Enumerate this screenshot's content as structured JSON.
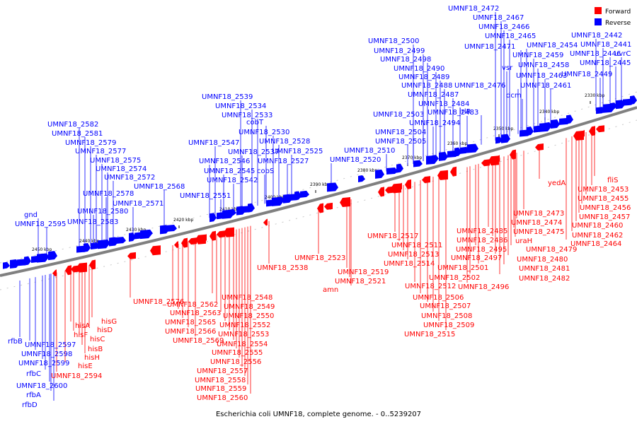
{
  "caption": "Escherichia coli UMNF18, complete genome. - 0..5239207",
  "legend": [
    {
      "label": "Forward",
      "color": "#ff0000"
    },
    {
      "label": "Reverse",
      "color": "#0000ff"
    }
  ],
  "colors": {
    "forward": "#ff0000",
    "reverse": "#0000ff",
    "backbone": "#808080"
  },
  "ticks": [
    {
      "label": "2450 kbp"
    },
    {
      "label": "2440 kbp"
    },
    {
      "label": "2430 kbp"
    },
    {
      "label": "2420 kbp"
    },
    {
      "label": "2410 kbp"
    },
    {
      "label": "2400 kbp"
    },
    {
      "label": "2390 kbp"
    },
    {
      "label": "2380 kbp"
    },
    {
      "label": "2370 kbp"
    },
    {
      "label": "2360 kbp"
    },
    {
      "label": "2350 kbp"
    },
    {
      "label": "2340 kbp"
    },
    {
      "label": "2330 kbp"
    }
  ],
  "reverse_labels": [
    "UMNF18_2472",
    "UMNF18_2467",
    "UMNF18_2466",
    "UMNF18_2465",
    "UMNF18_2471",
    "UMNF18_2454",
    "UMNF18_2459",
    "vsr",
    "UMNF18_2458",
    "UMNF18_2463",
    "UMNF18_2476",
    "dcm",
    "UMNF18_2461",
    "UMNF18_2442",
    "UMNF18_2441",
    "UMNF18_2446",
    "uvrC",
    "UMNF18_2445",
    "UMNF18_2449",
    "UMNF18_2500",
    "UMNF18_2499",
    "UMNF18_2498",
    "UMNF18_2490",
    "UMNF18_2489",
    "UMNF18_2488",
    "UMNF18_2487",
    "UMNF18_2484",
    "UMNF18_2483",
    "irlR",
    "UMNF18_2503",
    "UMNF18_2494",
    "UMNF18_2504",
    "UMNF18_2505",
    "UMNF18_2510",
    "UMNF18_2520",
    "UMNF18_2539",
    "UMNF18_2534",
    "UMNF18_2533",
    "cobT",
    "UMNF18_2530",
    "UMNF18_2547",
    "UMNF18_2528",
    "UMNF18_2537",
    "UMNF18_2546",
    "UMNF18_2525",
    "UMNF18_2527",
    "UMNF18_2545",
    "cobS",
    "UMNF18_2542",
    "UMNF18_2568",
    "UMNF18_2551",
    "UMNF18_2582",
    "UMNF18_2581",
    "UMNF18_2579",
    "UMNF18_2577",
    "UMNF18_2575",
    "UMNF18_2574",
    "UMNF18_2572",
    "UMNF18_2578",
    "UMNF18_2571",
    "UMNF18_2580",
    "UMNF18_2583",
    "gnd",
    "UMNF18_2595",
    "rfbB",
    "UMNF18_2597",
    "UMNF18_2598",
    "UMNF18_2599",
    "rfbC",
    "UMNF18_2600",
    "rfbA",
    "rfbD"
  ],
  "forward_labels": [
    "fliS",
    "UMNF18_2453",
    "UMNF18_2455",
    "UMNF18_2456",
    "UMNF18_2457",
    "UMNF18_2460",
    "UMNF18_2462",
    "UMNF18_2464",
    "yedA",
    "UMNF18_2473",
    "UMNF18_2474",
    "UMNF18_2475",
    "UMNF18_2485",
    "UMNF18_2486",
    "uraH",
    "UMNF18_2479",
    "UMNF18_2495",
    "UMNF18_2497",
    "UMNF18_2480",
    "UMNF18_2501",
    "UMNF18_2481",
    "UMNF18_2502",
    "UMNF18_2482",
    "UMNF18_2496",
    "UMNF18_2517",
    "UMNF18_2511",
    "UMNF18_2513",
    "UMNF18_2514",
    "UMNF18_2512",
    "UMNF18_2506",
    "UMNF18_2507",
    "UMNF18_2508",
    "UMNF18_2509",
    "UMNF18_2515",
    "UMNF18_2523",
    "UMNF18_2538",
    "UMNF18_2519",
    "UMNF18_2521",
    "amn",
    "UMNF18_2548",
    "UMNF18_2549",
    "UMNF18_2550",
    "UMNF18_2552",
    "UMNF18_2553",
    "UMNF18_2554",
    "UMNF18_2555",
    "UMNF18_2556",
    "UMNF18_2557",
    "UMNF18_2558",
    "UMNF18_2559",
    "UMNF18_2560",
    "UMNF18_2576",
    "UMNF18_2562",
    "UMNF18_2563",
    "UMNF18_2565",
    "UMNF18_2566",
    "UMNF18_2569",
    "hisG",
    "hisD",
    "hisA",
    "hisF",
    "hisC",
    "hisB",
    "hisH",
    "hisE",
    "UMNF18_2594"
  ]
}
